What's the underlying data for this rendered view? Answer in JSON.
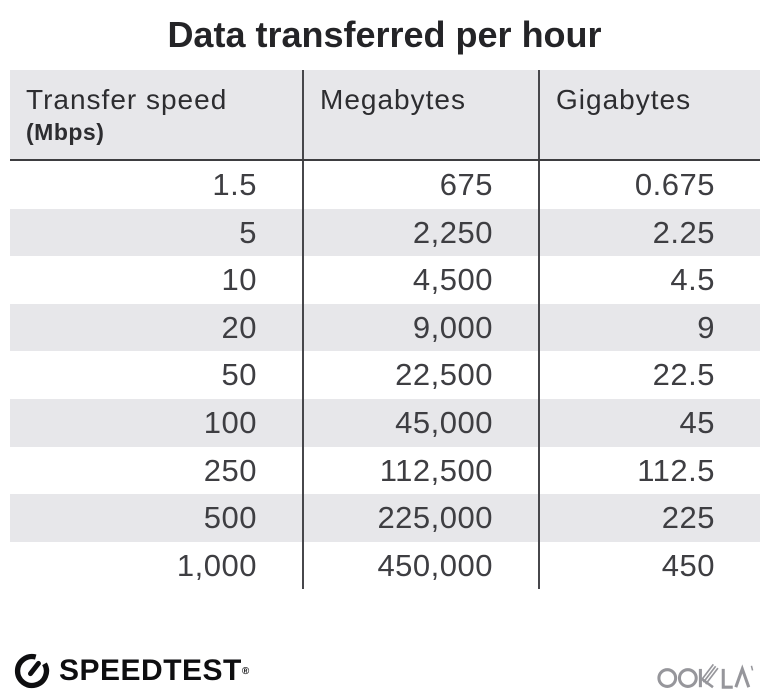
{
  "title": "Data transferred per hour",
  "table": {
    "headers": [
      {
        "label": "Transfer speed",
        "sub": "(Mbps)"
      },
      {
        "label": "Megabytes",
        "sub": ""
      },
      {
        "label": "Gigabytes",
        "sub": ""
      }
    ],
    "rows": [
      [
        "1.5",
        "675",
        "0.675"
      ],
      [
        "5",
        "2,250",
        "2.25"
      ],
      [
        "10",
        "4,500",
        "4.5"
      ],
      [
        "20",
        "9,000",
        "9"
      ],
      [
        "50",
        "22,500",
        "22.5"
      ],
      [
        "100",
        "45,000",
        "45"
      ],
      [
        "250",
        "112,500",
        "112.5"
      ],
      [
        "500",
        "225,000",
        "225"
      ],
      [
        "1,000",
        "450,000",
        "450"
      ]
    ]
  },
  "footer": {
    "speedtest_label": "SPEEDTEST",
    "speedtest_trademark": "®",
    "ookla_label": "OOKLA"
  },
  "colors": {
    "stripe_gray": "#e7e7ea",
    "divider_dark": "#47474b",
    "title_text": "#242427",
    "data_text": "#3e3e42",
    "speedtest_black": "#0e0e10",
    "ookla_gray": "#96969b"
  },
  "chart_data": {
    "type": "table",
    "title": "Data transferred per hour",
    "columns": [
      "Transfer speed (Mbps)",
      "Megabytes",
      "Gigabytes"
    ],
    "rows": [
      [
        1.5,
        675,
        0.675
      ],
      [
        5,
        2250,
        2.25
      ],
      [
        10,
        4500,
        4.5
      ],
      [
        20,
        9000,
        9
      ],
      [
        50,
        22500,
        22.5
      ],
      [
        100,
        45000,
        45
      ],
      [
        250,
        112500,
        112.5
      ],
      [
        500,
        225000,
        225
      ],
      [
        1000,
        450000,
        450
      ]
    ],
    "layout": {
      "header_background": "#e7e7ea",
      "alternating_row_background": "#e7e7ea",
      "column_alignment": [
        "right",
        "right",
        "right"
      ]
    }
  }
}
